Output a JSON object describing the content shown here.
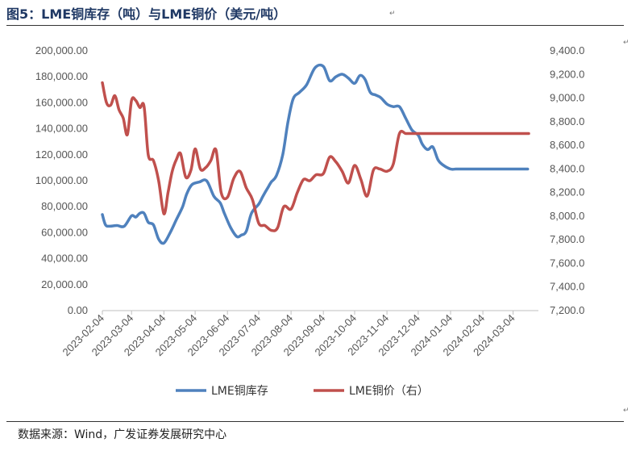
{
  "header": {
    "title": "图5：LME铜库存（吨）与LME铜价（美元/吨）"
  },
  "footer": {
    "source": "数据来源：Wind，广发证券发展研究中心"
  },
  "chart_data": {
    "type": "line",
    "x_tick_labels": [
      "2023-02-04",
      "2023-03-04",
      "2023-04-04",
      "2023-05-04",
      "2023-06-04",
      "2023-07-04",
      "2023-08-04",
      "2023-09-04",
      "2023-10-04",
      "2023-11-04",
      "2023-12-04",
      "2024-01-04",
      "2024-02-04",
      "2024-03-04"
    ],
    "x_range": [
      "2023-02-04",
      "2024-03-19"
    ],
    "y_left": {
      "ticks": [
        "0.00",
        "20,000.00",
        "40,000.00",
        "60,000.00",
        "80,000.00",
        "100,000.00",
        "120,000.00",
        "140,000.00",
        "160,000.00",
        "180,000.00",
        "200,000.00"
      ],
      "range": [
        0,
        200000
      ]
    },
    "y_right": {
      "ticks": [
        "7,200.0",
        "7,400.0",
        "7,600.0",
        "7,800.0",
        "8,000.0",
        "8,200.0",
        "8,400.0",
        "8,600.0",
        "8,800.0",
        "9,000.0",
        "9,200.0",
        "9,400.0"
      ],
      "range": [
        7200,
        9400
      ]
    },
    "grid": false,
    "legend_position": "bottom",
    "series": [
      {
        "name": "LME铜库存",
        "axis": "left",
        "color": "#4f81bd",
        "x": [
          "2023-02-04",
          "2023-02-07",
          "2023-02-11",
          "2023-02-18",
          "2023-02-25",
          "2023-03-04",
          "2023-03-08",
          "2023-03-12",
          "2023-03-16",
          "2023-03-20",
          "2023-03-25",
          "2023-03-30",
          "2023-04-04",
          "2023-04-10",
          "2023-04-16",
          "2023-04-22",
          "2023-04-26",
          "2023-05-01",
          "2023-05-08",
          "2023-05-15",
          "2023-05-22",
          "2023-05-28",
          "2023-06-01",
          "2023-06-07",
          "2023-06-13",
          "2023-06-17",
          "2023-06-22",
          "2023-06-27",
          "2023-07-04",
          "2023-07-08",
          "2023-07-13",
          "2023-07-16",
          "2023-07-21",
          "2023-07-27",
          "2023-08-01",
          "2023-08-06",
          "2023-08-12",
          "2023-08-19",
          "2023-08-27",
          "2023-09-04",
          "2023-09-10",
          "2023-09-16",
          "2023-09-22",
          "2023-09-28",
          "2023-10-04",
          "2023-10-09",
          "2023-10-14",
          "2023-10-19",
          "2023-10-24",
          "2023-10-29",
          "2023-11-04",
          "2023-11-10",
          "2023-11-16",
          "2023-11-22",
          "2023-11-28",
          "2023-12-04",
          "2023-12-08",
          "2023-12-13",
          "2023-12-18",
          "2023-12-23",
          "2023-12-28",
          "2024-01-04",
          "2024-01-09",
          "2024-01-14",
          "2024-01-19",
          "2024-01-24",
          "2024-01-29",
          "2024-02-04",
          "2024-02-09",
          "2024-02-14",
          "2024-02-19",
          "2024-02-24",
          "2024-02-29",
          "2024-03-04",
          "2024-03-08",
          "2024-03-13",
          "2024-03-18"
        ],
        "values": [
          74000,
          66000,
          65000,
          65500,
          65000,
          73000,
          72000,
          75000,
          75000,
          68000,
          66000,
          55000,
          52000,
          60000,
          70000,
          80000,
          90000,
          97000,
          99000,
          100000,
          88000,
          83000,
          75000,
          64000,
          57000,
          58000,
          61000,
          75000,
          82000,
          88000,
          95000,
          99000,
          104000,
          120000,
          145000,
          163000,
          168000,
          174000,
          187000,
          188000,
          177000,
          180000,
          182000,
          179000,
          175000,
          181000,
          178000,
          168000,
          166000,
          164000,
          159000,
          157000,
          157000,
          148000,
          139000,
          135000,
          128000,
          124000,
          126000,
          116000,
          112000,
          109000,
          109000,
          109000,
          109000,
          109000,
          109000,
          109000,
          109000,
          109000,
          109000,
          109000,
          109000,
          109000,
          109000,
          109000,
          109000
        ]
      },
      {
        "name": "LME铜价（右）",
        "axis": "right",
        "color": "#c0504d",
        "x": [
          "2023-02-04",
          "2023-02-08",
          "2023-02-12",
          "2023-02-16",
          "2023-02-20",
          "2023-02-24",
          "2023-02-28",
          "2023-03-04",
          "2023-03-08",
          "2023-03-12",
          "2023-03-16",
          "2023-03-20",
          "2023-03-25",
          "2023-03-30",
          "2023-04-04",
          "2023-04-08",
          "2023-04-12",
          "2023-04-16",
          "2023-04-20",
          "2023-04-25",
          "2023-04-30",
          "2023-05-04",
          "2023-05-09",
          "2023-05-14",
          "2023-05-19",
          "2023-05-24",
          "2023-05-29",
          "2023-06-04",
          "2023-06-10",
          "2023-06-16",
          "2023-06-22",
          "2023-06-28",
          "2023-07-04",
          "2023-07-10",
          "2023-07-16",
          "2023-07-22",
          "2023-07-28",
          "2023-08-04",
          "2023-08-10",
          "2023-08-16",
          "2023-08-22",
          "2023-08-28",
          "2023-09-04",
          "2023-09-10",
          "2023-09-16",
          "2023-09-22",
          "2023-09-28",
          "2023-10-04",
          "2023-10-10",
          "2023-10-16",
          "2023-10-22",
          "2023-10-28",
          "2023-11-04",
          "2023-11-10",
          "2023-11-16",
          "2023-11-22",
          "2023-11-28",
          "2023-12-04",
          "2023-12-10",
          "2023-12-16",
          "2023-12-22",
          "2023-12-28",
          "2024-01-04",
          "2024-01-10",
          "2024-01-16",
          "2024-01-22",
          "2024-01-28",
          "2024-02-04",
          "2024-02-10",
          "2024-02-16",
          "2024-02-22",
          "2024-02-28",
          "2024-03-04",
          "2024-03-10",
          "2024-03-19"
        ],
        "values": [
          9130,
          8960,
          8940,
          9020,
          8900,
          8830,
          8690,
          8980,
          8980,
          8920,
          8930,
          8520,
          8470,
          8300,
          8020,
          8200,
          8380,
          8480,
          8530,
          8330,
          8390,
          8570,
          8400,
          8410,
          8470,
          8560,
          8200,
          8160,
          8320,
          8380,
          8240,
          8140,
          7940,
          7920,
          7880,
          7900,
          8080,
          8060,
          8200,
          8310,
          8300,
          8350,
          8360,
          8500,
          8460,
          8380,
          8280,
          8430,
          8310,
          8170,
          8390,
          8400,
          8380,
          8440,
          8700,
          8700,
          8700,
          8700,
          8700,
          8700,
          8700,
          8700,
          8700,
          8700,
          8700,
          8700,
          8700,
          8700,
          8700,
          8700,
          8700,
          8700,
          8700,
          8700,
          8700
        ]
      }
    ]
  }
}
